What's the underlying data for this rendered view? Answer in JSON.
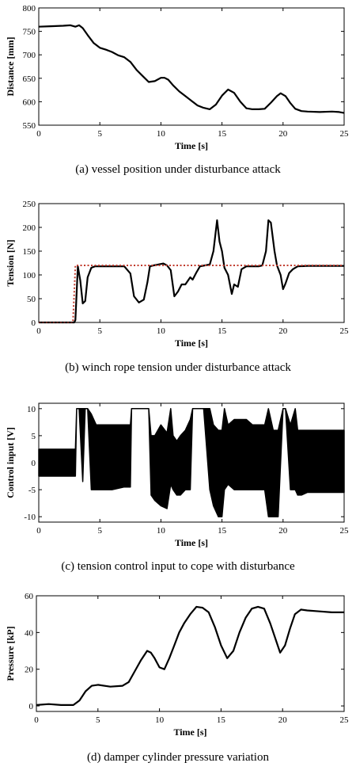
{
  "chart_data": [
    {
      "type": "line",
      "caption": "(a)  vessel  position  under  disturbance  attack",
      "xlabel": "Time [s]",
      "ylabel": "Distance [mm]",
      "xlim": [
        0,
        25
      ],
      "ylim": [
        550,
        800
      ],
      "xticks": [
        0,
        5,
        10,
        15,
        20,
        25
      ],
      "yticks": [
        550,
        600,
        650,
        700,
        750,
        800
      ],
      "series": [
        {
          "style": "solid",
          "color": "#000000",
          "x": [
            0,
            1,
            2,
            2.6,
            3,
            3.3,
            3.6,
            4,
            4.5,
            5,
            5.5,
            6,
            6.5,
            7,
            7.5,
            8,
            8.5,
            9,
            9.5,
            10,
            10.3,
            10.6,
            11,
            11.5,
            12,
            12.5,
            13,
            13.5,
            14,
            14.5,
            15,
            15.5,
            16,
            16.5,
            17,
            17.5,
            18,
            18.5,
            19,
            19.5,
            19.8,
            20.2,
            20.6,
            21,
            21.5,
            22,
            23,
            24,
            24.6,
            25
          ],
          "y": [
            760,
            761,
            762,
            763,
            760,
            763,
            757,
            742,
            725,
            715,
            711,
            706,
            699,
            695,
            685,
            668,
            655,
            642,
            644,
            651,
            651,
            647,
            635,
            622,
            612,
            602,
            592,
            587,
            584,
            594,
            613,
            626,
            619,
            600,
            586,
            584,
            584,
            585,
            598,
            612,
            618,
            612,
            597,
            585,
            580,
            579,
            578,
            579,
            578,
            576
          ]
        }
      ]
    },
    {
      "type": "line",
      "caption": "(b)  winch  rope  tension  under  disturbance  attack",
      "xlabel": "Time [s]",
      "ylabel": "Tension [N]",
      "xlim": [
        0,
        25
      ],
      "ylim": [
        0,
        250
      ],
      "xticks": [
        0,
        5,
        10,
        15,
        20,
        25
      ],
      "yticks": [
        0,
        50,
        100,
        150,
        200,
        250
      ],
      "series": [
        {
          "style": "solid",
          "color": "#000000",
          "x": [
            0,
            2.9,
            3.0,
            3.2,
            3.4,
            3.6,
            3.8,
            4.0,
            4.3,
            4.6,
            5,
            6,
            7,
            7.5,
            7.8,
            8.2,
            8.6,
            8.9,
            9.1,
            9.4,
            9.8,
            10.2,
            10.5,
            10.8,
            11.1,
            11.4,
            11.7,
            12.0,
            12.4,
            12.6,
            12.9,
            13.2,
            13.6,
            14.0,
            14.3,
            14.6,
            14.8,
            15.0,
            15.2,
            15.5,
            15.8,
            16.0,
            16.3,
            16.6,
            17,
            18,
            18.3,
            18.6,
            18.8,
            19.0,
            19.3,
            19.5,
            19.8,
            20.0,
            20.2,
            20.5,
            20.8,
            21.2,
            22,
            23,
            24,
            25
          ],
          "y": [
            0,
            0,
            5,
            118,
            88,
            40,
            45,
            95,
            115,
            118,
            118,
            118,
            118,
            103,
            55,
            42,
            48,
            85,
            118,
            120,
            122,
            124,
            120,
            110,
            55,
            65,
            80,
            80,
            95,
            90,
            105,
            118,
            120,
            122,
            150,
            215,
            170,
            150,
            115,
            100,
            60,
            80,
            75,
            112,
            118,
            118,
            120,
            150,
            215,
            210,
            150,
            120,
            100,
            70,
            82,
            104,
            112,
            118,
            119,
            119,
            119,
            119
          ]
        },
        {
          "style": "dotted",
          "color": "#c0392b",
          "x": [
            0,
            2.8,
            3.0,
            25
          ],
          "y": [
            0,
            0,
            120,
            120
          ]
        }
      ]
    },
    {
      "type": "area",
      "caption": "(c)  tension  control  input  to  cope  with  disturbance",
      "xlabel": "Time [s]",
      "ylabel": "Control input [V]",
      "xlim": [
        0,
        25
      ],
      "ylim": [
        -11,
        11
      ],
      "xticks": [
        0,
        5,
        10,
        15,
        20,
        25
      ],
      "yticks": [
        -10,
        -5,
        0,
        5,
        10
      ],
      "series": [
        {
          "name": "upper",
          "style": "envelope",
          "color": "#000000",
          "x": [
            0,
            3.0,
            3.1,
            3.3,
            3.6,
            3.8,
            4.0,
            4.3,
            4.7,
            5,
            6,
            7,
            7.5,
            7.6,
            8,
            9,
            9.2,
            9.5,
            10,
            10.5,
            10.8,
            11,
            11.3,
            11.6,
            12,
            12.4,
            12.6,
            13,
            13.5,
            14,
            14.3,
            14.7,
            15.0,
            15.2,
            15.5,
            16,
            16.5,
            17,
            17.5,
            18,
            18.5,
            18.8,
            19.2,
            19.6,
            20,
            20.2,
            20.6,
            21.0,
            21.2,
            21.5,
            22,
            23,
            24,
            25
          ],
          "y": [
            2.5,
            2.5,
            10,
            10,
            10,
            10,
            10,
            9,
            7,
            7,
            7,
            7,
            7,
            10,
            10,
            10,
            5,
            5,
            7,
            5.5,
            10,
            5,
            4,
            5,
            6,
            8,
            10,
            10,
            10,
            10,
            7,
            6,
            6,
            10,
            7,
            8,
            8,
            8,
            7,
            7,
            7,
            10,
            6,
            6,
            10,
            10,
            7,
            10,
            6,
            6,
            6,
            6,
            6,
            6
          ]
        },
        {
          "name": "lower",
          "style": "envelope",
          "color": "#000000",
          "x": [
            0,
            3.0,
            3.1,
            3.3,
            3.6,
            3.8,
            4.0,
            4.3,
            4.7,
            5,
            6,
            7,
            7.5,
            7.6,
            8,
            9,
            9.2,
            9.5,
            10,
            10.5,
            10.8,
            11,
            11.3,
            11.6,
            12,
            12.4,
            12.6,
            13,
            13.5,
            14,
            14.3,
            14.7,
            15.0,
            15.2,
            15.5,
            16,
            16.5,
            17,
            17.5,
            18,
            18.5,
            18.8,
            19.2,
            19.6,
            20,
            20.2,
            20.6,
            21.0,
            21.2,
            21.5,
            22,
            23,
            24,
            25
          ],
          "y": [
            -2.5,
            -2.5,
            10,
            10,
            -3.5,
            10,
            10,
            -5,
            -5,
            -5,
            -5,
            -4.5,
            -4.5,
            10,
            10,
            10,
            -6,
            -7,
            -8,
            -8.5,
            -4,
            -5,
            -6,
            -6,
            -5,
            -5,
            10,
            10,
            10,
            -5,
            -8,
            -10,
            -10,
            -5,
            -4,
            -5,
            -5,
            -5,
            -5,
            -5,
            -5,
            -10,
            -10,
            -10,
            10,
            10,
            -5,
            -5,
            -6,
            -6,
            -5.5,
            -5.5,
            -5.5,
            -5.5
          ]
        }
      ]
    },
    {
      "type": "line",
      "caption": "(d)  damper  cylinder  pressure  variation",
      "xlabel": "Time [s]",
      "ylabel": "Pressure [kP]",
      "xlim": [
        0,
        25
      ],
      "ylim": [
        -3,
        60
      ],
      "xticks": [
        0,
        5,
        10,
        15,
        20,
        25
      ],
      "yticks": [
        0,
        20,
        40,
        60
      ],
      "series": [
        {
          "style": "solid",
          "color": "#000000",
          "x": [
            0,
            1,
            2,
            3,
            3.5,
            4,
            4.5,
            5,
            6,
            7,
            7.5,
            8,
            8.5,
            9,
            9.3,
            9.6,
            10,
            10.4,
            10.8,
            11.2,
            11.6,
            12,
            12.5,
            13,
            13.5,
            14,
            14.5,
            15,
            15.5,
            16,
            16.5,
            17,
            17.5,
            18,
            18.5,
            19,
            19.5,
            19.8,
            20.2,
            20.6,
            21,
            21.5,
            22,
            23,
            24,
            25
          ],
          "y": [
            0.5,
            1,
            0.5,
            0.5,
            3,
            8,
            11,
            11.5,
            10.5,
            11,
            13,
            19,
            25,
            30,
            29,
            26,
            21,
            20,
            26,
            33,
            40,
            45,
            50,
            54,
            53.5,
            51,
            43,
            33,
            26,
            30,
            40,
            48,
            53,
            54,
            53,
            45,
            35,
            29,
            33,
            42,
            50,
            52.5,
            52,
            51.5,
            51,
            51
          ]
        }
      ]
    }
  ]
}
